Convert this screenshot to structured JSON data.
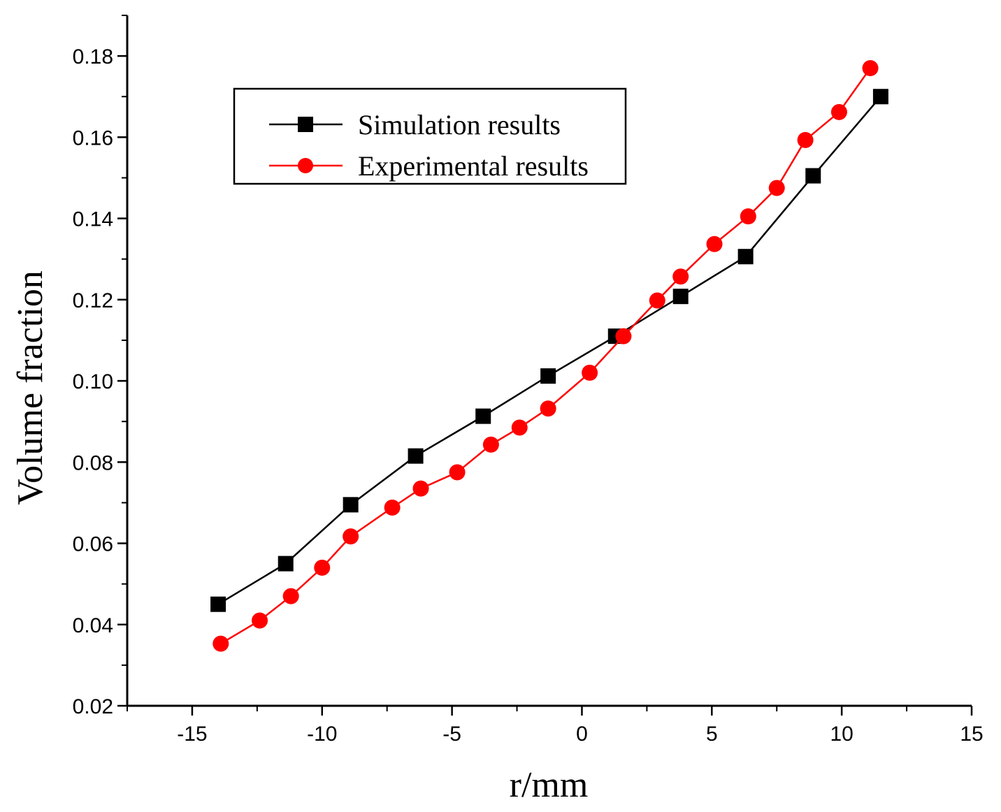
{
  "chart_data": {
    "type": "line",
    "title": "",
    "xlabel": "r/mm",
    "ylabel": "Volume fraction",
    "xlim": [
      -17.5,
      15
    ],
    "ylim": [
      0.02,
      0.19
    ],
    "xticks": [
      -15,
      -10,
      -5,
      0,
      5,
      10,
      15
    ],
    "xtick_labels": [
      "-15",
      "-10",
      "-5",
      "0",
      "5",
      "10",
      "15"
    ],
    "yticks": [
      0.02,
      0.04,
      0.06,
      0.08,
      0.1,
      0.12,
      0.14,
      0.16,
      0.18
    ],
    "ytick_labels": [
      "0.02",
      "0.04",
      "0.06",
      "0.08",
      "0.10",
      "0.12",
      "0.14",
      "0.16",
      "0.18"
    ],
    "grid": false,
    "legend_position": "top-left",
    "series": [
      {
        "name": "Simulation results",
        "color": "#000000",
        "marker": "square",
        "x": [
          -14.0,
          -11.4,
          -8.9,
          -6.4,
          -3.8,
          -1.3,
          1.3,
          3.8,
          6.3,
          8.9,
          11.5
        ],
        "y": [
          0.045,
          0.055,
          0.0695,
          0.0815,
          0.0913,
          0.1012,
          0.111,
          0.1208,
          0.1306,
          0.1505,
          0.17
        ]
      },
      {
        "name": "Experimental results",
        "color": "#ff0000",
        "marker": "circle",
        "x": [
          -13.9,
          -12.4,
          -11.2,
          -10.0,
          -8.9,
          -7.3,
          -6.2,
          -4.8,
          -3.5,
          -2.4,
          -1.3,
          0.3,
          1.6,
          2.9,
          3.8,
          5.1,
          6.4,
          7.5,
          8.6,
          9.9,
          11.1
        ],
        "y": [
          0.0353,
          0.041,
          0.047,
          0.054,
          0.0617,
          0.0688,
          0.0735,
          0.0775,
          0.0843,
          0.0885,
          0.0932,
          0.102,
          0.111,
          0.1198,
          0.1257,
          0.1337,
          0.1405,
          0.1475,
          0.1593,
          0.1662,
          0.177
        ]
      }
    ]
  }
}
